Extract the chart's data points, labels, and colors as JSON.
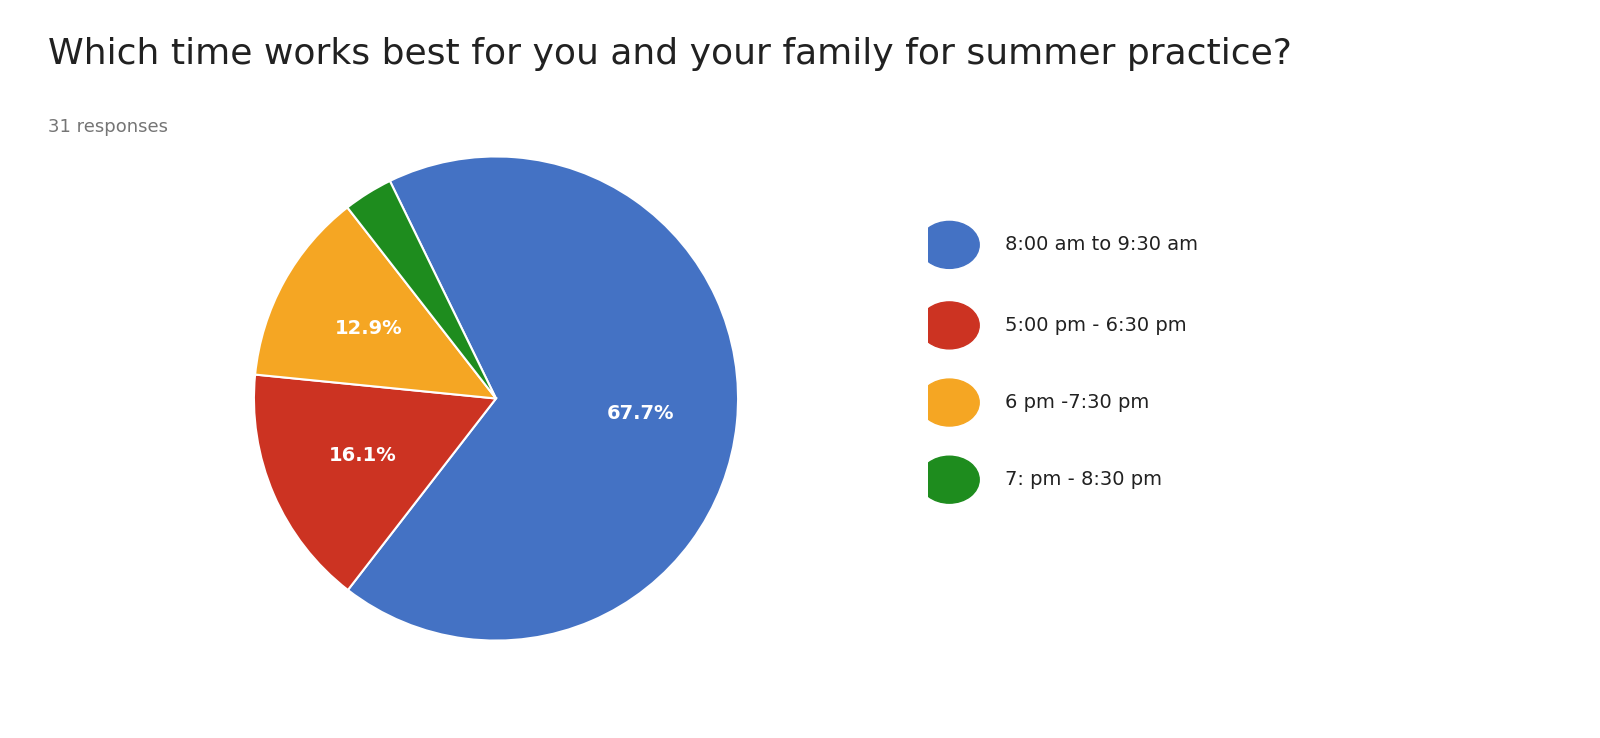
{
  "title": "Which time works best for you and your family for summer practice?",
  "subtitle": "31 responses",
  "labels": [
    "8:00 am to 9:30 am",
    "5:00 pm - 6:30 pm",
    "6 pm -7:30 pm",
    "7: pm - 8:30 pm"
  ],
  "values": [
    67.7,
    16.1,
    12.9,
    3.3
  ],
  "colors": [
    "#4472C4",
    "#CC3322",
    "#F5A623",
    "#1E8C1E"
  ],
  "background_color": "#ffffff",
  "title_fontsize": 26,
  "subtitle_fontsize": 13,
  "subtitle_color": "#757575",
  "legend_fontsize": 14,
  "startangle": 116,
  "pct_fontsize": 14
}
